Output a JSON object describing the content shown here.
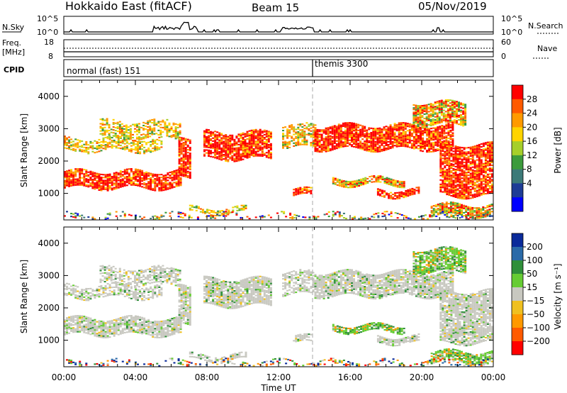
{
  "header": {
    "station": "Hokkaido East (fitACF)",
    "beam": "Beam 15",
    "date": "05/Nov/2019"
  },
  "noise_panel": {
    "left_label": "N.Sky",
    "right_label": "N.Search",
    "left_ticks": [
      "10^5",
      "10^0"
    ],
    "right_ticks": [
      "10^5",
      "10^0"
    ]
  },
  "freq_panel": {
    "left_label_line1": "Freq.",
    "left_label_line2": "[MHz]",
    "right_label": "Nave",
    "left_ticks": [
      "18",
      "8"
    ],
    "right_ticks": [
      "60",
      "0"
    ]
  },
  "cpid_panel": {
    "label": "CPID",
    "segments": [
      {
        "start_hour": 0,
        "name": "normal (fast) 151"
      },
      {
        "start_hour": 14.0,
        "name": "themis 3300"
      }
    ]
  },
  "chart_data": [
    {
      "type": "heatmap",
      "parameter": "Power",
      "ylabel": "Slant Range [km]",
      "xlabel": "Time UT",
      "ylim": [
        180,
        4500
      ],
      "xlim_hours": [
        0,
        24
      ],
      "y_ticks": [
        1000,
        2000,
        3000,
        4000
      ],
      "x_tick_labels": [
        "00:00",
        "04:00",
        "08:00",
        "12:00",
        "16:00",
        "20:00",
        "00:00"
      ],
      "colorbar": {
        "label": "Power [dB]",
        "ticks": [
          "28",
          "24",
          "20",
          "16",
          "12",
          "8",
          "4"
        ],
        "colors": [
          "#ff0000",
          "#ff5a00",
          "#ff9a00",
          "#ffd400",
          "#a6cf2a",
          "#3c9b3c",
          "#3c7a78",
          "#1e3c96",
          "#0000ff"
        ]
      }
    },
    {
      "type": "heatmap",
      "parameter": "Velocity",
      "ylabel": "Slant Range [km]",
      "xlabel": "Time UT",
      "ylim": [
        180,
        4500
      ],
      "xlim_hours": [
        0,
        24
      ],
      "y_ticks": [
        1000,
        2000,
        3000,
        4000
      ],
      "x_tick_labels": [
        "00:00",
        "04:00",
        "08:00",
        "12:00",
        "16:00",
        "20:00",
        "00:00"
      ],
      "colorbar": {
        "label": "Velocity [m s⁻¹]",
        "ticks": [
          "200",
          "100",
          "50",
          "15",
          "−15",
          "−50",
          "−100",
          "−200"
        ],
        "colors": [
          "#0a2a9a",
          "#2a6aa8",
          "#2f8f3a",
          "#66cc33",
          "#c8c8c0",
          "#f0c020",
          "#ff9900",
          "#ff5a00",
          "#ff0000"
        ]
      }
    }
  ],
  "echo_regions": [
    {
      "t0": 0.0,
      "t1": 6.5,
      "r0": 1150,
      "r1": 1680,
      "kind": "strong"
    },
    {
      "t0": 6.4,
      "t1": 7.1,
      "r0": 1450,
      "r1": 2650,
      "kind": "strong"
    },
    {
      "t0": 0.0,
      "t1": 5.5,
      "r0": 2300,
      "r1": 2700,
      "kind": "weak"
    },
    {
      "t0": 2.0,
      "t1": 6.5,
      "r0": 2700,
      "r1": 3200,
      "kind": "weak"
    },
    {
      "t0": 7.8,
      "t1": 11.6,
      "r0": 2050,
      "r1": 2900,
      "kind": "strong"
    },
    {
      "t0": 12.2,
      "t1": 14.0,
      "r0": 2400,
      "r1": 3100,
      "kind": "weak"
    },
    {
      "t0": 14.0,
      "t1": 21.8,
      "r0": 2350,
      "r1": 3100,
      "kind": "strong"
    },
    {
      "t0": 19.5,
      "t1": 22.5,
      "r0": 3100,
      "r1": 3800,
      "kind": "mixed"
    },
    {
      "t0": 21.0,
      "t1": 24.0,
      "r0": 900,
      "r1": 2500,
      "kind": "strong"
    },
    {
      "t0": 15.0,
      "t1": 19.0,
      "r0": 1250,
      "r1": 1450,
      "kind": "mixed"
    },
    {
      "t0": 17.5,
      "t1": 19.8,
      "r0": 900,
      "r1": 1100,
      "kind": "strong"
    },
    {
      "t0": 12.8,
      "t1": 13.8,
      "r0": 900,
      "r1": 1100,
      "kind": "strong"
    },
    {
      "t0": 7.0,
      "t1": 10.2,
      "r0": 380,
      "r1": 560,
      "kind": "weak"
    },
    {
      "t0": 20.5,
      "t1": 24.0,
      "r0": 300,
      "r1": 650,
      "kind": "mixed"
    },
    {
      "t0": 0.0,
      "t1": 24.0,
      "r0": 190,
      "r1": 330,
      "kind": "ground"
    }
  ]
}
